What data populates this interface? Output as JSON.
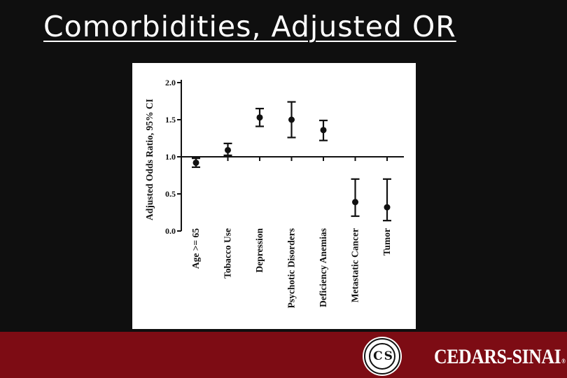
{
  "slide": {
    "title": "Comorbidities, Adjusted OR"
  },
  "logo": {
    "seal_text": "C S",
    "wordmark": "CEDARS-SINAI",
    "registered": "®"
  },
  "colors": {
    "background": "#0f0f0f",
    "footer": "#7d0c14",
    "chart_ink": "#111111"
  },
  "chart_data": {
    "type": "scatter",
    "subtype": "point-estimate-with-error-bars",
    "title": "",
    "xlabel": "",
    "ylabel": "Adjusted Odds Ratio, 95% CI",
    "ylim": [
      0.0,
      2.0
    ],
    "yticks": [
      "0.0",
      "0.5",
      "1.0",
      "1.5",
      "2.0"
    ],
    "reference_line": 1.0,
    "grid": false,
    "categories": [
      "Age >= 65",
      "Tobacco Use",
      "Depression",
      "Psychotic Disorders",
      "Deficiency Anemias",
      "Metastatic Cancer",
      "Tumor"
    ],
    "series": [
      {
        "values": [
          0.92,
          1.09,
          1.53,
          1.5,
          1.36,
          0.39,
          0.32
        ],
        "ci_low": [
          0.86,
          1.02,
          1.41,
          1.26,
          1.22,
          0.2,
          0.14
        ],
        "ci_high": [
          0.98,
          1.18,
          1.65,
          1.74,
          1.49,
          0.7,
          0.7
        ]
      }
    ]
  }
}
